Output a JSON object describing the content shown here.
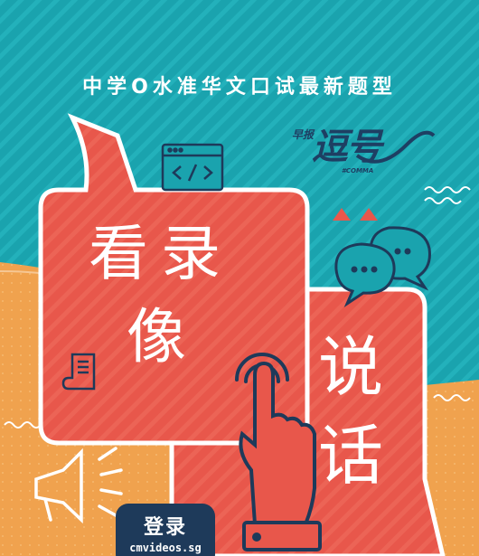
{
  "poster": {
    "headline": "中学O水准华文口试最新题型",
    "logo": {
      "top_text": "早报",
      "main_text": "逗号",
      "sub_text": "#COMMA"
    },
    "bubble_left_chars": [
      "看",
      "录",
      "像"
    ],
    "bubble_right_chars": [
      "说",
      "话"
    ],
    "cta": {
      "title": "登录",
      "url": "cmvideos.sg"
    },
    "colors": {
      "teal": "#1aa3ae",
      "orange": "#f0a24e",
      "coral": "#e8574b",
      "navy": "#1e3a5a",
      "white": "#ffffff"
    },
    "icons": [
      "code-window-icon",
      "chat-bubbles-icon",
      "tap-hand-icon",
      "megaphone-icon",
      "document-icon",
      "triangle-peaks-icon"
    ]
  }
}
